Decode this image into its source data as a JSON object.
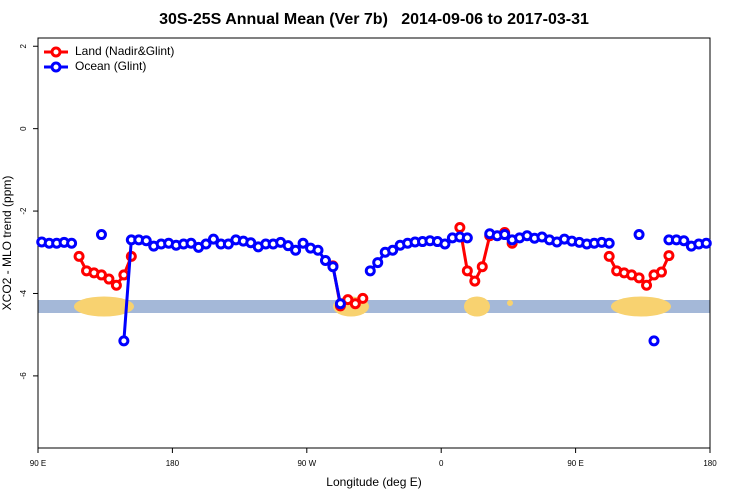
{
  "chart_data": {
    "type": "line",
    "title": "30S-25S Annual Mean (Ver 7b)   2014-09-06 to 2017-03-31",
    "x_label": "Longitude (deg E)",
    "y_label": "XCO2 - MLO trend (ppm)",
    "x": [
      92.5,
      97.5,
      102.5,
      107.5,
      112.5,
      117.5,
      122.5,
      127.5,
      132.5,
      137.5,
      142.5,
      147.5,
      152.5,
      157.5,
      162.5,
      167.5,
      172.5,
      177.5,
      182.5,
      187.5,
      192.5,
      197.5,
      202.5,
      207.5,
      212.5,
      217.5,
      222.5,
      227.5,
      232.5,
      237.5,
      242.5,
      247.5,
      252.5,
      257.5,
      262.5,
      267.5,
      272.5,
      277.5,
      282.5,
      287.5,
      292.5,
      297.5,
      302.5,
      307.5,
      312.5,
      317.5,
      322.5,
      327.5,
      332.5,
      337.5,
      342.5,
      347.5,
      352.5,
      357.5,
      362.5,
      367.5,
      372.5,
      377.5,
      382.5,
      387.5,
      392.5,
      397.5,
      402.5,
      407.5,
      412.5,
      417.5,
      422.5,
      427.5,
      432.5,
      437.5,
      442.5,
      447.5,
      452.5,
      457.5,
      462.5,
      467.5,
      472.5,
      477.5,
      482.5,
      487.5,
      492.5,
      497.5,
      502.5,
      507.5,
      512.5,
      517.5,
      522.5,
      527.5,
      532.5,
      537.5
    ],
    "xlim": [
      90,
      540
    ],
    "xticks": [
      {
        "value": 90,
        "label": "90 E"
      },
      180,
      {
        "value": 270,
        "label": "90 W"
      },
      {
        "value": 360,
        "label": "0"
      },
      {
        "value": 450,
        "label": "90 E"
      },
      {
        "value": 540,
        "label": "180"
      }
    ],
    "ylim": [
      -7.75,
      2.2
    ],
    "yticks": [
      -6,
      -4,
      -2,
      0,
      2
    ],
    "grid": false,
    "legend": "top-left",
    "series": [
      {
        "name": "Land (Nadir&Glint)",
        "color": "#ff0000",
        "values": [
          null,
          null,
          null,
          null,
          null,
          -3.1,
          -3.45,
          -3.5,
          -3.55,
          -3.65,
          -3.8,
          -3.55,
          -3.1,
          null,
          null,
          null,
          null,
          null,
          null,
          null,
          null,
          null,
          null,
          null,
          null,
          null,
          null,
          null,
          null,
          null,
          null,
          null,
          null,
          null,
          null,
          null,
          null,
          null,
          null,
          -3.33,
          -4.3,
          -4.15,
          -4.25,
          -4.12,
          null,
          null,
          null,
          null,
          null,
          null,
          null,
          null,
          null,
          null,
          null,
          null,
          -2.4,
          -3.45,
          -3.7,
          -3.35,
          -2.6,
          null,
          -2.52,
          -2.78,
          null,
          null,
          null,
          null,
          null,
          null,
          null,
          null,
          null,
          null,
          null,
          null,
          -3.1,
          -3.45,
          -3.5,
          -3.55,
          -3.62,
          -3.8,
          -3.55,
          -3.48,
          -3.08,
          null,
          null,
          null,
          null,
          null
        ]
      },
      {
        "name": "Ocean (Glint)",
        "color": "#0000ff",
        "values": [
          -2.75,
          -2.78,
          -2.78,
          -2.76,
          -2.78,
          null,
          null,
          null,
          -2.57,
          null,
          null,
          -5.15,
          -2.7,
          -2.7,
          -2.72,
          -2.85,
          -2.8,
          -2.78,
          -2.83,
          -2.8,
          -2.78,
          -2.88,
          -2.8,
          -2.68,
          -2.8,
          -2.8,
          -2.7,
          -2.73,
          -2.77,
          -2.87,
          -2.8,
          -2.8,
          -2.76,
          -2.84,
          -2.95,
          -2.78,
          -2.9,
          -2.95,
          -3.2,
          -3.35,
          -4.25,
          null,
          null,
          null,
          -3.45,
          -3.25,
          -3.0,
          -2.95,
          -2.83,
          -2.78,
          -2.75,
          -2.74,
          -2.72,
          -2.74,
          -2.8,
          -2.65,
          -2.63,
          -2.65,
          null,
          null,
          -2.55,
          -2.6,
          -2.57,
          -2.7,
          -2.65,
          -2.6,
          -2.66,
          -2.63,
          -2.7,
          -2.75,
          -2.68,
          -2.73,
          -2.76,
          -2.8,
          -2.78,
          -2.76,
          -2.78,
          null,
          null,
          null,
          -2.57,
          null,
          -5.15,
          null,
          -2.7,
          -2.7,
          -2.72,
          -2.85,
          -2.8,
          -2.78
        ]
      }
    ]
  }
}
